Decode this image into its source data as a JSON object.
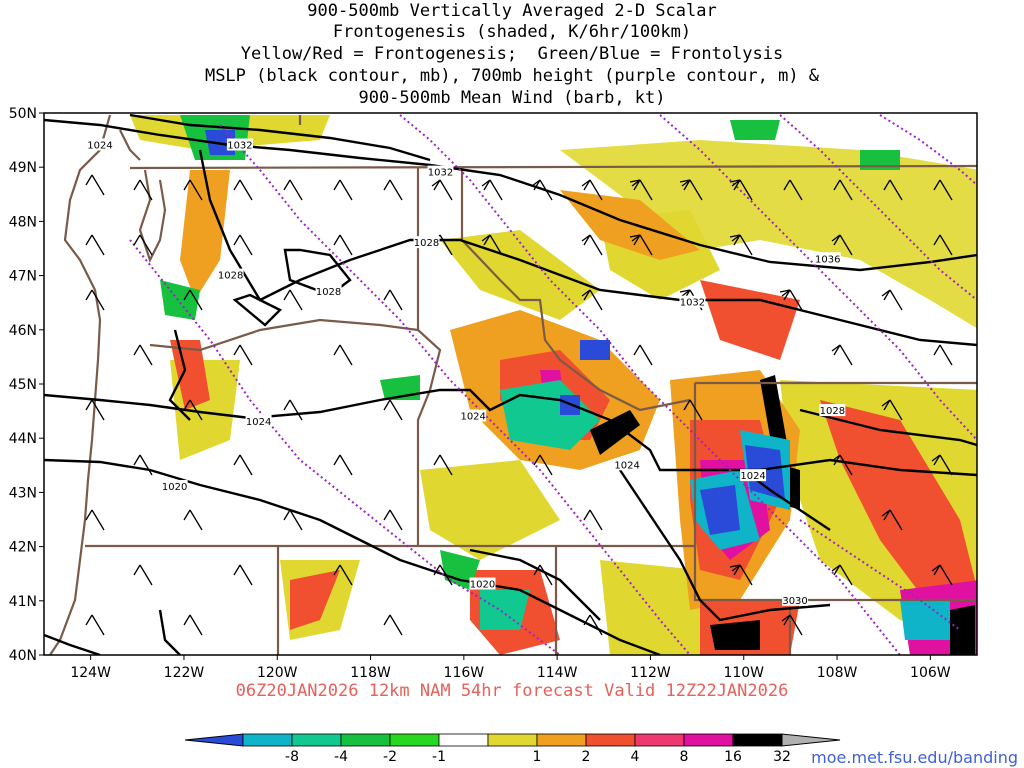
{
  "title_lines": [
    "900-500mb Vertically Averaged 2-D Scalar",
    "Frontogenesis (shaded, K/6hr/100km)",
    "Yellow/Red = Frontogenesis;  Green/Blue = Frontolysis",
    "MSLP (black contour, mb), 700mb height (purple contour, m) &",
    "900-500mb Mean Wind (barb, kt)"
  ],
  "lat_labels": [
    "50N",
    "49N",
    "48N",
    "47N",
    "46N",
    "45N",
    "44N",
    "43N",
    "42N",
    "41N",
    "40N"
  ],
  "lon_labels": [
    "124W",
    "122W",
    "120W",
    "118W",
    "116W",
    "114W",
    "112W",
    "110W",
    "108W",
    "106W"
  ],
  "contour_labels": [
    {
      "text": "1024",
      "lat": 49.4,
      "lon": -123.8
    },
    {
      "text": "1032",
      "lat": 49.4,
      "lon": -120.8
    },
    {
      "text": "1032",
      "lat": 48.9,
      "lon": -116.5
    },
    {
      "text": "1028",
      "lat": 47.6,
      "lon": -116.8
    },
    {
      "text": "1028",
      "lat": 47.0,
      "lon": -121.0
    },
    {
      "text": "1028",
      "lat": 46.7,
      "lon": -118.9
    },
    {
      "text": "1036",
      "lat": 47.3,
      "lon": -108.2
    },
    {
      "text": "1032",
      "lat": 46.5,
      "lon": -111.1
    },
    {
      "text": "1024",
      "lat": 44.3,
      "lon": -120.4
    },
    {
      "text": "1024",
      "lat": 44.4,
      "lon": -115.8
    },
    {
      "text": "1024",
      "lat": 43.5,
      "lon": -112.5
    },
    {
      "text": "1024",
      "lat": 43.3,
      "lon": -109.8
    },
    {
      "text": "1028",
      "lat": 44.5,
      "lon": -108.1
    },
    {
      "text": "1020",
      "lat": 43.1,
      "lon": -122.2
    },
    {
      "text": "1020",
      "lat": 41.3,
      "lon": -115.6
    },
    {
      "text": "3030",
      "lat": 41.0,
      "lon": -108.9
    }
  ],
  "valid_line": "06Z20JAN2026 12km NAM 54hr forecast Valid 12Z22JAN2026",
  "colorbar": {
    "labels": [
      "-8",
      "-4",
      "-2",
      "-1",
      "1",
      "2",
      "4",
      "8",
      "16",
      "32"
    ],
    "colors": [
      "#2a4bd7",
      "#10b4c8",
      "#10c890",
      "#18c040",
      "#28d820",
      "#ffffff",
      "#e0d830",
      "#f0a020",
      "#f05030",
      "#f03870",
      "#e010a0",
      "#000000",
      "#b0b0b0"
    ]
  },
  "credit": "moe.met.fsu.edu/banding"
}
